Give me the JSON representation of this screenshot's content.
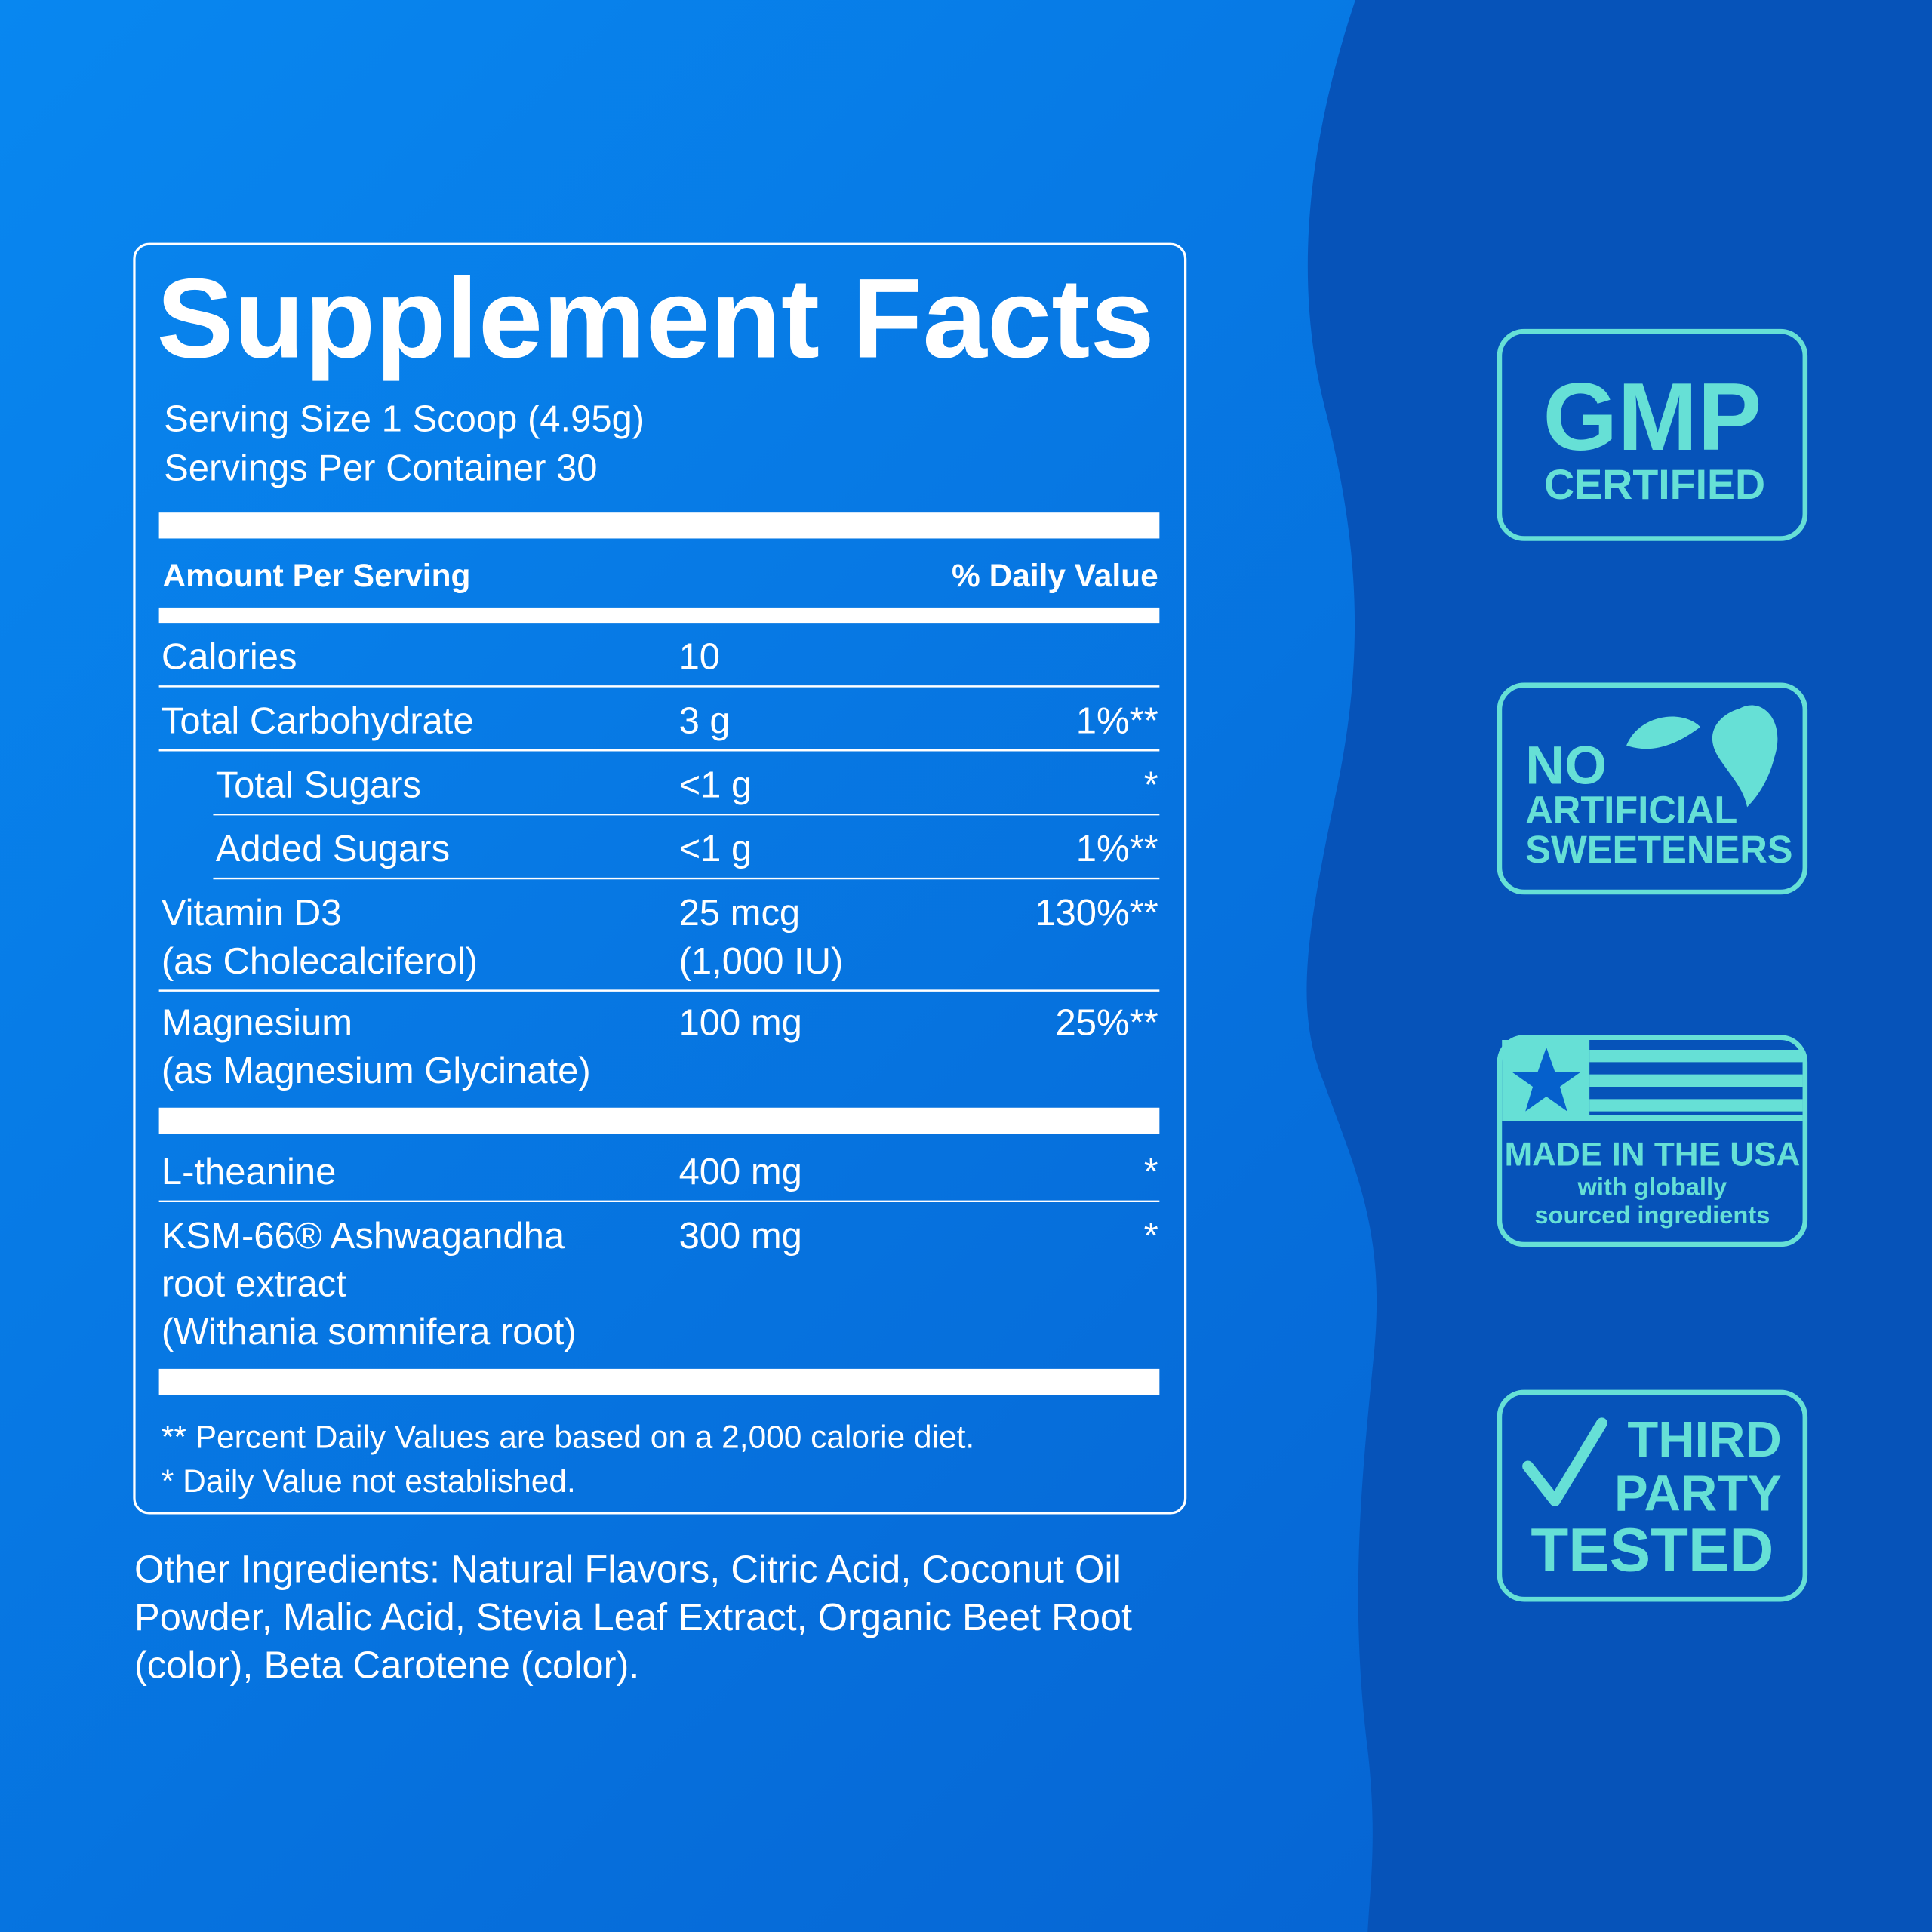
{
  "facts": {
    "title": "Supplement Facts",
    "serving_size": "Serving Size 1 Scoop (4.95g)",
    "servings_per_container": "Servings Per Container 30",
    "header": {
      "amount": "Amount Per Serving",
      "daily_value": "% Daily Value"
    },
    "sections": [
      [
        {
          "name": [
            "Calories"
          ],
          "amount": [
            "10"
          ]
        },
        {
          "name": [
            "Total Carbohydrate"
          ],
          "amount": [
            "3 g"
          ],
          "dv": "1%**"
        },
        {
          "name": [
            "Total Sugars"
          ],
          "amount": [
            "<1 g"
          ],
          "dv": "*",
          "indent": true
        },
        {
          "name": [
            "Added Sugars"
          ],
          "amount": [
            "<1 g"
          ],
          "dv": "1%**",
          "indent": true
        },
        {
          "name": [
            "Vitamin D3",
            "(as Cholecalciferol)"
          ],
          "amount": [
            "25 mcg",
            "(1,000 IU)"
          ],
          "dv": "130%**"
        },
        {
          "name": [
            "Magnesium",
            "(as Magnesium Glycinate)"
          ],
          "amount": [
            "100 mg"
          ],
          "dv": "25%**"
        }
      ],
      [
        {
          "name": [
            "L-theanine"
          ],
          "amount": [
            "400 mg"
          ],
          "dv": "*"
        },
        {
          "name": [
            "KSM-66® Ashwagandha",
            "root extract",
            "(Withania somnifera root)"
          ],
          "amount": [
            "300 mg"
          ],
          "dv": "*"
        }
      ]
    ],
    "footnotes": [
      "** Percent Daily Values are based on a 2,000 calorie diet.",
      "* Daily Value not established."
    ]
  },
  "other_ingredients": [
    "Other Ingredients: Natural Flavors, Citric Acid, Coconut Oil",
    "Powder, Malic Acid, Stevia Leaf Extract, Organic Beet Root",
    "(color), Beta Carotene (color)."
  ],
  "badges": {
    "gmp": [
      "GMP",
      "CERTIFIED"
    ],
    "sweeteners": [
      "NO",
      "ARTIFICIAL",
      "SWEETENERS"
    ],
    "usa": [
      "MADE IN THE USA",
      "with globally",
      "sourced ingredients"
    ],
    "tested": [
      "THIRD",
      "PARTY",
      "TESTED"
    ]
  }
}
